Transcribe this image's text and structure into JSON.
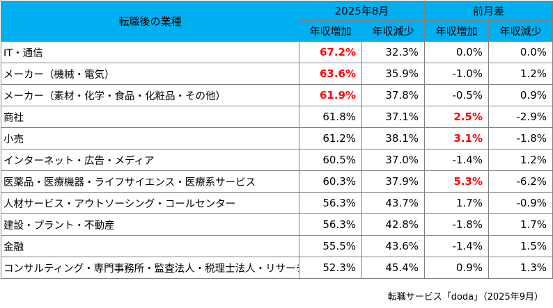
{
  "table": {
    "header": {
      "category_label": "転職後の業種",
      "period_label": "2025年8月",
      "change_label": "前月差",
      "col_increase": "年収増加",
      "col_decrease": "年収減少"
    },
    "rows": [
      {
        "industry": "IT・通信",
        "increase": "67.2%",
        "decrease": "32.3%",
        "diff_increase": "0.0%",
        "diff_decrease": "0.0%"
      },
      {
        "industry": "メーカー（機械・電気）",
        "increase": "63.6%",
        "decrease": "35.9%",
        "diff_increase": "-1.0%",
        "diff_decrease": "1.2%"
      },
      {
        "industry": "メーカー（素材・化学・食品・化粧品・その他）",
        "increase": "61.9%",
        "decrease": "37.8%",
        "diff_increase": "-0.5%",
        "diff_decrease": "0.9%"
      },
      {
        "industry": "商社",
        "increase": "61.8%",
        "decrease": "37.1%",
        "diff_increase": "2.5%",
        "diff_decrease": "-2.9%"
      },
      {
        "industry": "小売",
        "increase": "61.2%",
        "decrease": "38.1%",
        "diff_increase": "3.1%",
        "diff_decrease": "-1.8%"
      },
      {
        "industry": "インターネット・広告・メディア",
        "increase": "60.5%",
        "decrease": "37.0%",
        "diff_increase": "-1.4%",
        "diff_decrease": "1.2%"
      },
      {
        "industry": "医薬品・医療機器・ライフサイエンス・医療系サービス",
        "increase": "60.3%",
        "decrease": "37.9%",
        "diff_increase": "5.3%",
        "diff_decrease": "-6.2%"
      },
      {
        "industry": "人材サービス・アウトソーシング・コールセンター",
        "increase": "56.3%",
        "decrease": "43.7%",
        "diff_increase": "1.7%",
        "diff_decrease": "-0.9%"
      },
      {
        "industry": "建設・プラント・不動産",
        "increase": "56.3%",
        "decrease": "42.8%",
        "diff_increase": "-1.8%",
        "diff_decrease": "1.7%"
      },
      {
        "industry": "金融",
        "increase": "55.5%",
        "decrease": "43.6%",
        "diff_increase": "-1.4%",
        "diff_decrease": "1.5%"
      },
      {
        "industry": "コンサルティング・専門事務所・監査法人・税理士法人・リサーチ",
        "increase": "52.3%",
        "decrease": "45.4%",
        "diff_increase": "0.9%",
        "diff_decrease": "1.3%"
      }
    ]
  },
  "source_note": "転職サービス「doda」（2025年9月）",
  "colors": {
    "header_bg": "#00b0f0",
    "highlight": "#ff0000"
  }
}
